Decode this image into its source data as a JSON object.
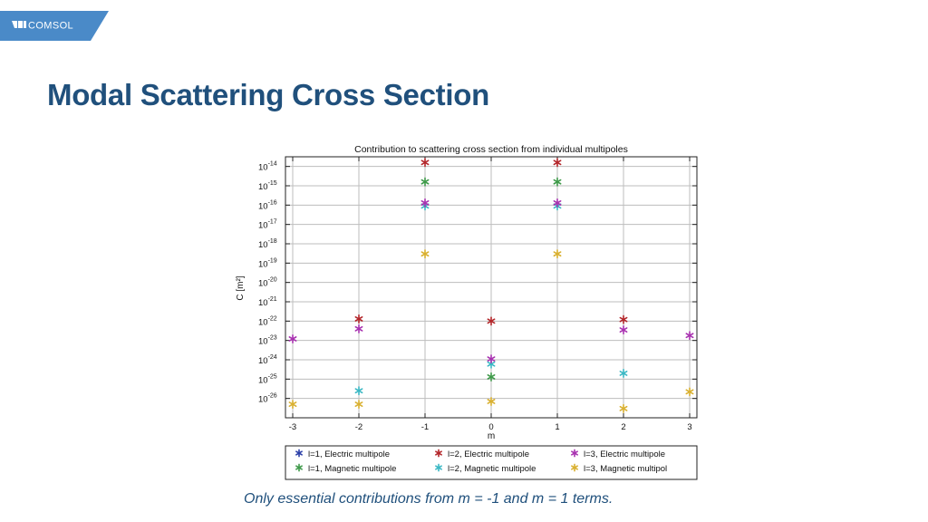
{
  "brand": {
    "name": "COMSOL",
    "color": "#4a8ac8"
  },
  "slide": {
    "title": "Modal Scattering Cross Section",
    "caption": "Only essential contributions from m = -1 and m = 1 terms."
  },
  "chart_data": {
    "type": "scatter",
    "title": "Contribution to scattering cross section from individual multipoles",
    "xlabel": "m",
    "ylabel": "C [m²]",
    "xlim": [
      -3,
      3
    ],
    "ylim_exponent": [
      -27,
      -13.5
    ],
    "y_scale": "log",
    "grid": true,
    "legend_position": "bottom",
    "x_ticks": [
      "-3",
      "-2",
      "-1",
      "0",
      "1",
      "2",
      "3"
    ],
    "y_tick_exponents": [
      "-14",
      "-15",
      "-16",
      "-17",
      "-18",
      "-19",
      "-20",
      "-21",
      "-22",
      "-23",
      "-24",
      "-25",
      "-26"
    ],
    "series": [
      {
        "name": "l=1, Electric multipole",
        "color": "#2b3fa8",
        "points": []
      },
      {
        "name": "l=1, Magnetic multipole",
        "color": "#3f9a4a",
        "points": [
          [
            -1,
            1.6e-15
          ],
          [
            0,
            1.3e-25
          ],
          [
            1,
            1.6e-15
          ]
        ]
      },
      {
        "name": "l=2, Electric multipole",
        "color": "#b3262a",
        "points": [
          [
            -2,
            1.3e-22
          ],
          [
            -1,
            1.6e-14
          ],
          [
            0,
            1e-22
          ],
          [
            1,
            1.6e-14
          ],
          [
            2,
            1.2e-22
          ]
        ]
      },
      {
        "name": "l=2, Magnetic multipole",
        "color": "#3bb8c4",
        "points": [
          [
            -2,
            2.5e-26
          ],
          [
            -1,
            9e-17
          ],
          [
            0,
            6e-25
          ],
          [
            1,
            9e-17
          ],
          [
            2,
            2e-25
          ]
        ]
      },
      {
        "name": "l=3, Electric multipole",
        "color": "#a832b0",
        "points": [
          [
            -3,
            1.2e-23
          ],
          [
            -2,
            4e-23
          ],
          [
            -1,
            1.3e-16
          ],
          [
            0,
            1.1e-24
          ],
          [
            1,
            1.3e-16
          ],
          [
            2,
            3.5e-23
          ],
          [
            3,
            1.8e-23
          ]
        ]
      },
      {
        "name": "l=3, Magnetic multipol",
        "color": "#d9b030",
        "points": [
          [
            -3,
            5e-27
          ],
          [
            -2,
            5e-27
          ],
          [
            -1,
            3e-19
          ],
          [
            0,
            7e-27
          ],
          [
            1,
            3e-19
          ],
          [
            2,
            3e-27
          ],
          [
            3,
            2.2e-26
          ]
        ]
      }
    ]
  }
}
